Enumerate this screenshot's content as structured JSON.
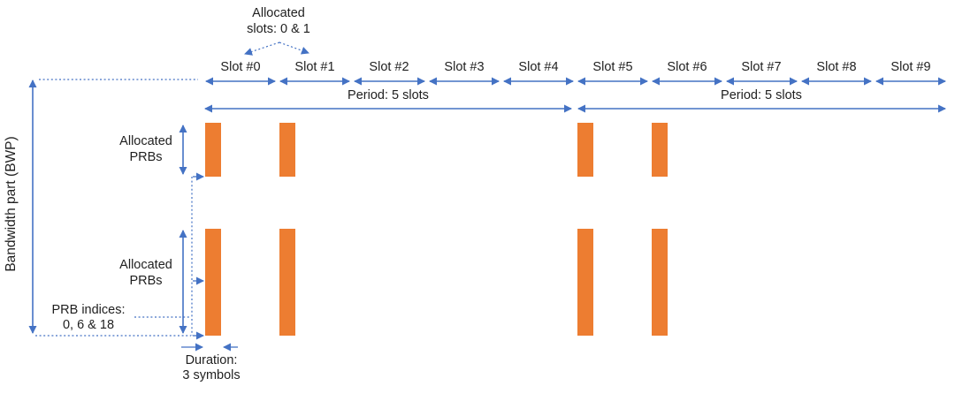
{
  "colors": {
    "blue": "#4472C4",
    "orange": "#ED7D31",
    "text": "#1f1f1f",
    "background": "#ffffff"
  },
  "labels": {
    "bwp": "Bandwidth part (BWP)",
    "allocated_slots": {
      "line1": "Allocated",
      "line2": "slots: 0 & 1"
    },
    "allocated_prbs_upper": {
      "line1": "Allocated",
      "line2": "PRBs"
    },
    "allocated_prbs_lower": {
      "line1": "Allocated",
      "line2": "PRBs"
    },
    "prb_indices": {
      "line1": "PRB indices:",
      "line2": "0, 6 & 18"
    },
    "duration": {
      "line1": "Duration:",
      "line2": "3 symbols"
    },
    "period_left": "Period: 5 slots",
    "period_right": "Period: 5 slots"
  },
  "slots": {
    "labels": [
      "Slot #0",
      "Slot #1",
      "Slot #2",
      "Slot #3",
      "Slot #4",
      "Slot #5",
      "Slot #6",
      "Slot #7",
      "Slot #8",
      "Slot #9"
    ]
  },
  "figure": {
    "type": "resource-allocation-diagram",
    "allocated_slots": [
      0,
      1,
      5,
      6
    ],
    "prb_index_markers": [
      0,
      6,
      18
    ],
    "bars_per_allocated_slot": 2,
    "period_slots": 5,
    "duration_symbols": 3
  }
}
